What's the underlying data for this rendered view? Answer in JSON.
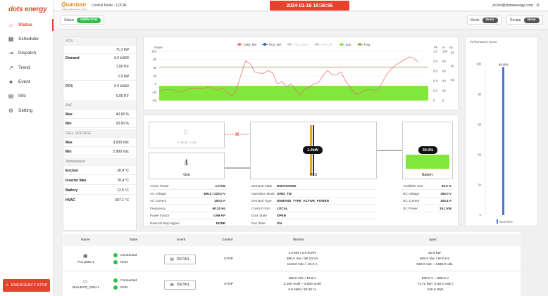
{
  "app": {
    "logo": "dots energy",
    "brand": "Quantum",
    "brand_sub": "Energy Management System",
    "control_mode": "Control Mode - LOCAL",
    "datetime": "2024-01-16 16:39:56",
    "user_email": "jh.lim@dotsenergy.com"
  },
  "sidebar": {
    "items": [
      {
        "label": "Status",
        "icon": "home-icon"
      },
      {
        "label": "Scheduler",
        "icon": "calendar-icon"
      },
      {
        "label": "Dispatch",
        "icon": "exit-icon"
      },
      {
        "label": "Trend",
        "icon": "trend-icon"
      },
      {
        "label": "Event",
        "icon": "star-icon"
      },
      {
        "label": "Info",
        "icon": "info-icon"
      },
      {
        "label": "Setting",
        "icon": "gear-icon"
      }
    ],
    "emergency_label": "EMERGENCY STOP"
  },
  "status_bar": {
    "status_label": "Status",
    "status_value": "DISPATCH",
    "mode_label": "Mode",
    "mode_value": "None",
    "recipe_label": "Recipe",
    "recipe_value": "None"
  },
  "left_panel": {
    "pcs_header": "PCS",
    "pcs_kw": "71.3 kW",
    "demand_label": "Demand",
    "demand_kvar": "0.0 kVAR",
    "demand_pf": "1.00 P.F",
    "pcs_kw2": "1.0 kW",
    "pcs_label": "PCS",
    "pcs_kvar": "0.0 kVAR",
    "pcs_pf": "0.99 P.F",
    "soc_header": "SoC",
    "max_label": "Max",
    "soc_max": "40.00 %",
    "min_label": "Min",
    "soc_min": "20.00 %",
    "cell_header": "CELL VOLTAGE",
    "cell_max": "3.000 Vdc",
    "cell_min": "2.900 Vdc",
    "temp_header": "Temperature",
    "enclosure_label": "Enclosr",
    "enclosure_value": "28.4 °C",
    "inverter_label": "Inverter Max.",
    "inverter_value": "78.4 °C",
    "battery_label": "Battery",
    "battery_value": "12.5 °C",
    "hvac_label": "HVAC",
    "hvac_value": "607.1 °C"
  },
  "colors": {
    "accent": "#e8412d",
    "cmd": "#e8776b",
    "pcs": "#3b5fc7",
    "pcs_kvar": "#bcbcbc",
    "pcs_pf": "#bcbcbc",
    "soc": "#7fe83a",
    "freq": "#a89d4f",
    "perf": "#4a74d9"
  },
  "chart_data": [
    {
      "type": "line",
      "title": "",
      "ylabel_left": "Power",
      "right_axis_labels": [
        "PF",
        "%",
        "Hz"
      ],
      "series": [
        {
          "name": "CMD_kW",
          "color": "#e8776b",
          "values": [
            -30,
            -20,
            -20,
            -20,
            -25,
            -30,
            -20,
            -15,
            -15,
            -15,
            -15,
            -10,
            -20,
            -20,
            -15,
            -30,
            -45,
            -20,
            35,
            85,
            75,
            45,
            40,
            40,
            50,
            40,
            0,
            10,
            -10,
            0,
            -20,
            -40,
            -20,
            -10,
            0,
            5,
            30,
            50,
            35,
            35,
            45,
            10,
            -10,
            -35,
            -35,
            -25,
            -20,
            -20,
            -25,
            5,
            35,
            55,
            70,
            80,
            90,
            100,
            95,
            80
          ]
        },
        {
          "name": "PCS_kW",
          "color": "#3b5fc7",
          "values": []
        },
        {
          "name": "PCS_kVAR",
          "color": "#bcbcbc",
          "values": []
        },
        {
          "name": "PCS_PF",
          "color": "#bcbcbc",
          "values": []
        },
        {
          "name": "SoC",
          "color": "#7fe83a",
          "value": 30
        },
        {
          "name": "Freq",
          "color": "#a89d4f",
          "value": 60
        }
      ],
      "y_ticks_left": [
        120,
        90,
        60,
        30,
        0,
        -30,
        -60
      ],
      "right_ticks_pf": [
        "1.0",
        "0.8",
        "0.6",
        "0.4",
        "0.2",
        "0"
      ],
      "right_ticks_pct": [
        "100",
        "80",
        "60",
        "40",
        "20",
        "0"
      ],
      "right_ticks_hz": [
        "65",
        "60",
        "55"
      ],
      "ylim": [
        -60,
        120
      ]
    },
    {
      "type": "bar",
      "title": "Performance Score",
      "categories": [
        "Real Time"
      ],
      "values": [
        98
      ],
      "value_label": "98.00%",
      "y_ticks": [
        "100",
        "80",
        "60",
        "40",
        "20",
        "0"
      ],
      "ylim": [
        0,
        100
      ]
    }
  ],
  "diagram": {
    "critical_load_label": "Critical Load",
    "grid_label": "Grid",
    "pcs_label": "PCS",
    "pcs_power": "1.0kW",
    "battery_label": "Battery",
    "battery_soc": "30.0%",
    "battery_soc_value": 0.3
  },
  "grid_info": [
    {
      "label": "Active Power",
      "value": "1.0 kW"
    },
    {
      "label": "AC Voltage",
      "value": "386.3 / 220.0 V"
    },
    {
      "label": "AC Current",
      "value": "100.0 A"
    },
    {
      "label": "Frequency",
      "value": "60.10 Hz"
    },
    {
      "label": "Power Factor",
      "value": "0.99 P.F"
    },
    {
      "label": "External Stop Signal",
      "value": "NONE"
    }
  ],
  "pcs_info": [
    {
      "label": "Demand State",
      "value": "DISCHARGE"
    },
    {
      "label": "Operation Mode",
      "value": "GRID_TIE"
    },
    {
      "label": "Demand Type",
      "value": "DEMAND_TYPE_ACTIVE_POWER"
    },
    {
      "label": "Control From",
      "value": "LOCAL"
    },
    {
      "label": "Door State",
      "value": "OPEN"
    },
    {
      "label": "Fan State",
      "value": "ON"
    }
  ],
  "battery_info": [
    {
      "label": "Available SoC",
      "value": "30.0 %"
    },
    {
      "label": "DC Voltage",
      "value": "150.0 V"
    },
    {
      "label": "DC Current",
      "value": "100.4 A"
    },
    {
      "label": "DC Power",
      "value": "15.1 kW"
    }
  ],
  "device_table": {
    "headers": [
      "Name",
      "State",
      "Event",
      "Control",
      "Monitor",
      "Spec."
    ],
    "rows": [
      {
        "name": "Pcs.pttsa-1",
        "state1": "Connected",
        "state2": "RUN",
        "event": "DETAIL",
        "control": "STOP",
        "monitor": [
          "1.0 kW / 0.0 kVAR",
          "386.3 Vac / 60.10 Hz",
          "1133.0 Vdc / -20.0 A"
        ],
        "spec": [
          "50.0 kW",
          "600.0 Vac / 60.0 Hz",
          "530.0 Vdc ~ 1480.0 Vdc"
        ]
      },
      {
        "name": "Bms.BYD_OSN-1",
        "state1": "Connected",
        "state2": "RUN",
        "event": "DETAIL",
        "control": "STOP",
        "monitor": [
          "150.0 Vdc / 49.9 A",
          "3.100 Vcell ~ 3.000 Vcell",
          "9.6 kWh / 20.00 %"
        ],
        "spec": [
          "630.0 V ~ 960.0 V",
          "71.72 kW / 0.30 C-rate )",
          "240.0 kWh"
        ]
      }
    ]
  }
}
